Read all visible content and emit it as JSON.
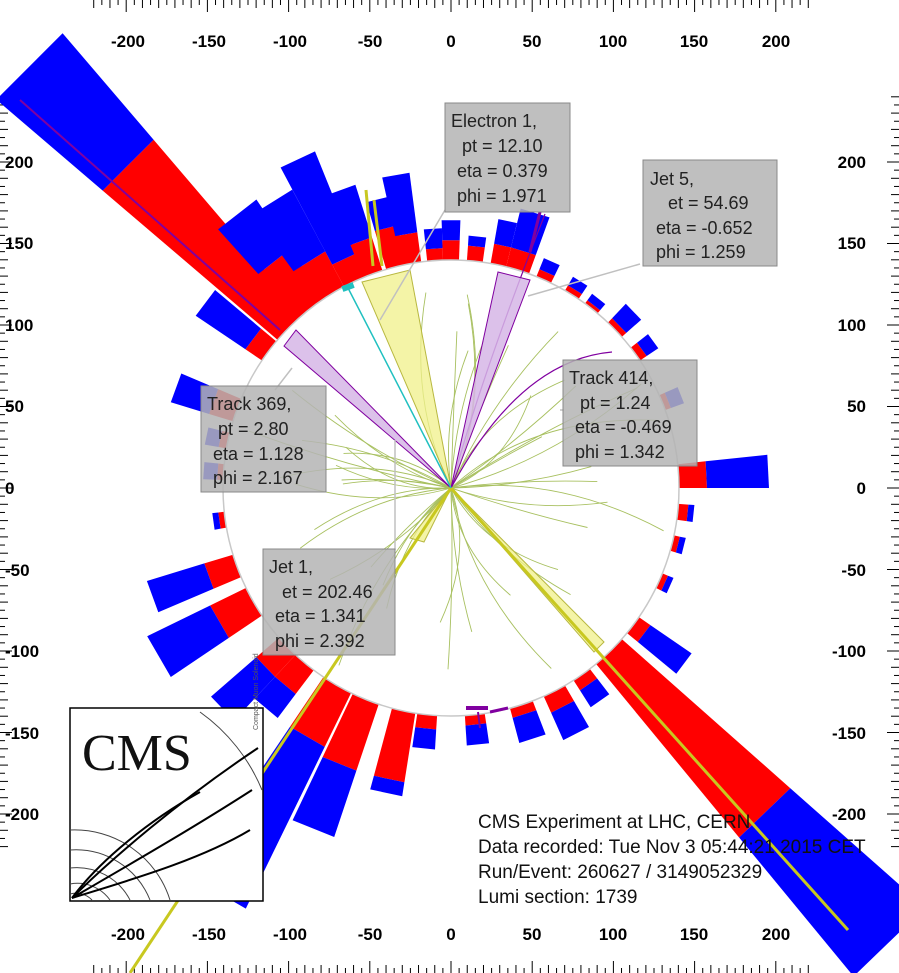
{
  "axes": {
    "x_ticks": [
      "-200",
      "-150",
      "-100",
      "-50",
      "0",
      "50",
      "100",
      "150",
      "200"
    ],
    "y_ticks": [
      "200",
      "150",
      "100",
      "50",
      "0",
      "-50",
      "-100",
      "-150",
      "-200"
    ]
  },
  "annotations": [
    {
      "lines": [
        "Electron 1,",
        "pt = 12.10",
        "eta = 0.379",
        "phi = 1.971"
      ]
    },
    {
      "lines": [
        "Jet 5,",
        "et = 54.69",
        "eta = -0.652",
        "phi = 1.259"
      ]
    },
    {
      "lines": [
        "Track 414,",
        "pt = 1.24",
        "eta = -0.469",
        "phi = 1.342"
      ]
    },
    {
      "lines": [
        "Track 369,",
        "pt = 2.80",
        "eta = 1.128",
        "phi = 2.167"
      ]
    },
    {
      "lines": [
        "Jet 1,",
        "et = 202.46",
        "eta = 1.341",
        "phi = 2.392"
      ]
    }
  ],
  "event_info": {
    "experiment": "CMS Experiment at LHC, CERN",
    "date": "Data recorded: Tue Nov  3 05:44:21 2015 CET",
    "run_event": "Run/Event: 260627 / 3149052329",
    "lumi": "Lumi section: 1739"
  },
  "logo": {
    "text": "CMS",
    "vertical_text": "Compact Muon Solenoid"
  },
  "colors": {
    "ecal": "#ff0000",
    "hcal": "#0000ff",
    "track": "#a8c060",
    "jet": "#f0f08a",
    "electron": "#c8c820",
    "muon_track": "#8000a0",
    "annotation_bg": "#b4b4b4"
  }
}
